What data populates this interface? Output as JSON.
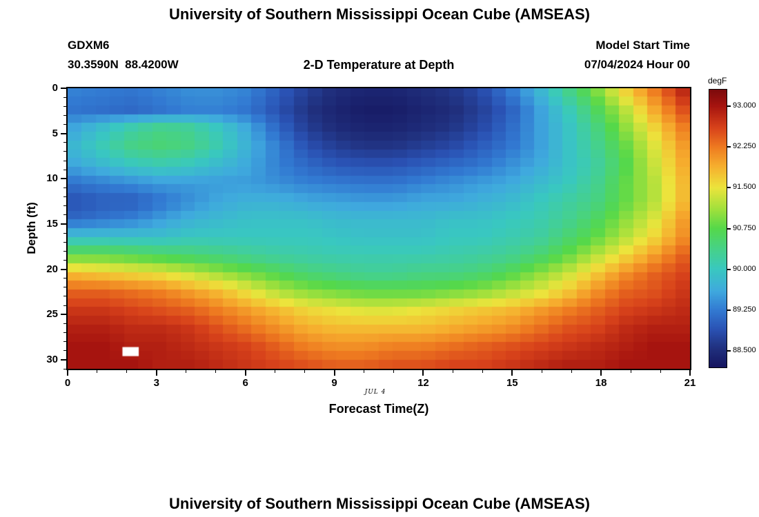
{
  "page": {
    "top_title": "University of Southern Mississippi Ocean Cube (AMSEAS)",
    "bottom_title": "University of Southern Mississippi Ocean Cube (AMSEAS)"
  },
  "header": {
    "station_id": "GDXM6",
    "coordinates": "30.3590N  88.4200W",
    "plot_title": "2-D Temperature at Depth",
    "model_start_label": "Model Start Time",
    "model_start_value": "07/04/2024 Hour 00"
  },
  "chart_data": {
    "type": "heatmap",
    "title": "2-D Temperature at Depth",
    "xlabel": "Forecast Time(Z)",
    "ylabel": "Depth (ft)",
    "date_annotation": "JUL 4",
    "x_axis": {
      "label": "Forecast Time(Z)",
      "lim": [
        0,
        21
      ],
      "major_ticks": [
        0,
        3,
        6,
        9,
        12,
        15,
        18,
        21
      ],
      "minor_step": 1,
      "hours": [
        0,
        1,
        2,
        3,
        4,
        5,
        6,
        7,
        8,
        9,
        10,
        11,
        12,
        13,
        14,
        15,
        16,
        17,
        18,
        19,
        20,
        21
      ]
    },
    "y_axis": {
      "label": "Depth (ft)",
      "lim": [
        0,
        31
      ],
      "major_ticks": [
        0,
        5,
        10,
        15,
        20,
        25,
        30
      ],
      "minor_step": 1,
      "depths_ft": [
        0,
        2,
        4,
        6,
        8,
        10,
        12,
        14,
        16,
        18,
        20,
        22,
        24,
        26,
        28,
        30
      ]
    },
    "values_degF": [
      [
        89.3,
        89.25,
        89.2,
        89.3,
        89.4,
        89.4,
        89.3,
        89.0,
        88.7,
        88.5,
        88.4,
        88.4,
        88.5,
        88.6,
        88.8,
        89.2,
        89.7,
        90.3,
        90.9,
        91.6,
        92.2,
        92.8
      ],
      [
        89.2,
        89.15,
        89.1,
        89.2,
        89.3,
        89.3,
        89.2,
        88.9,
        88.6,
        88.4,
        88.3,
        88.3,
        88.4,
        88.5,
        88.7,
        89.0,
        89.5,
        90.0,
        90.6,
        91.2,
        91.9,
        92.5
      ],
      [
        89.6,
        89.9,
        90.2,
        90.4,
        90.3,
        90.0,
        89.6,
        89.1,
        88.7,
        88.5,
        88.4,
        88.4,
        88.5,
        88.6,
        88.8,
        89.1,
        89.5,
        89.9,
        90.4,
        91.0,
        91.6,
        92.2
      ],
      [
        89.8,
        90.1,
        90.4,
        90.5,
        90.4,
        90.1,
        89.7,
        89.3,
        88.9,
        88.7,
        88.6,
        88.6,
        88.7,
        88.8,
        89.0,
        89.2,
        89.5,
        89.9,
        90.3,
        90.8,
        91.4,
        92.0
      ],
      [
        89.6,
        89.8,
        90.0,
        90.1,
        90.0,
        89.8,
        89.6,
        89.3,
        89.1,
        88.95,
        88.9,
        88.9,
        89.0,
        89.1,
        89.2,
        89.4,
        89.6,
        89.9,
        90.2,
        90.7,
        91.3,
        91.9
      ],
      [
        89.2,
        89.3,
        89.4,
        89.5,
        89.5,
        89.5,
        89.5,
        89.4,
        89.3,
        89.25,
        89.2,
        89.2,
        89.3,
        89.4,
        89.5,
        89.6,
        89.8,
        90.0,
        90.3,
        90.8,
        91.2,
        91.8
      ],
      [
        88.9,
        89.0,
        89.0,
        89.2,
        89.4,
        89.6,
        89.7,
        89.7,
        89.6,
        89.55,
        89.5,
        89.5,
        89.6,
        89.6,
        89.7,
        89.8,
        90.0,
        90.2,
        90.4,
        90.8,
        91.2,
        91.8
      ],
      [
        89.1,
        89.2,
        89.3,
        89.5,
        89.7,
        89.8,
        89.9,
        89.9,
        89.9,
        89.8,
        89.8,
        89.8,
        89.8,
        89.9,
        89.9,
        90.0,
        90.1,
        90.3,
        90.6,
        91.0,
        91.4,
        92.0
      ],
      [
        89.9,
        89.9,
        89.9,
        89.9,
        90.0,
        90.0,
        90.0,
        90.0,
        90.0,
        89.95,
        89.9,
        89.9,
        89.9,
        90.0,
        90.0,
        90.1,
        90.2,
        90.5,
        90.8,
        91.2,
        91.6,
        92.1
      ],
      [
        90.8,
        90.8,
        90.7,
        90.6,
        90.5,
        90.4,
        90.3,
        90.2,
        90.15,
        90.1,
        90.1,
        90.1,
        90.1,
        90.15,
        90.2,
        90.3,
        90.5,
        90.8,
        91.2,
        91.6,
        92.0,
        92.4
      ],
      [
        91.8,
        91.7,
        91.6,
        91.5,
        91.3,
        91.1,
        90.9,
        90.7,
        90.5,
        90.4,
        90.3,
        90.3,
        90.4,
        90.4,
        90.5,
        90.7,
        91.0,
        91.3,
        91.7,
        92.1,
        92.4,
        92.6
      ],
      [
        92.4,
        92.4,
        92.3,
        92.2,
        92.0,
        91.8,
        91.5,
        91.2,
        91.0,
        90.9,
        90.8,
        90.8,
        90.8,
        90.9,
        91.0,
        91.2,
        91.4,
        91.7,
        92.1,
        92.4,
        92.5,
        92.7
      ],
      [
        92.7,
        92.7,
        92.6,
        92.5,
        92.4,
        92.2,
        92.0,
        91.8,
        91.6,
        91.5,
        91.4,
        91.4,
        91.5,
        91.6,
        91.7,
        91.8,
        92.0,
        92.2,
        92.4,
        92.6,
        92.7,
        92.8
      ],
      [
        92.9,
        92.9,
        92.8,
        92.8,
        92.7,
        92.5,
        92.3,
        92.1,
        91.9,
        91.8,
        91.8,
        91.8,
        91.8,
        91.9,
        92.0,
        92.1,
        92.3,
        92.5,
        92.6,
        92.8,
        92.9,
        92.9
      ],
      [
        93.0,
        93.0,
        92.9,
        92.9,
        92.8,
        92.7,
        92.6,
        92.4,
        92.2,
        92.1,
        92.1,
        92.2,
        92.2,
        92.3,
        92.4,
        92.5,
        92.6,
        92.7,
        92.8,
        92.9,
        93.0,
        93.0
      ],
      [
        93.0,
        93.0,
        93.0,
        92.9,
        92.9,
        92.8,
        92.7,
        92.6,
        92.5,
        92.4,
        92.4,
        92.5,
        92.5,
        92.6,
        92.6,
        92.7,
        92.8,
        92.9,
        92.9,
        93.0,
        93.0,
        93.0
      ]
    ],
    "missing_cell": {
      "x_hour": 1.85,
      "depth_ft": 28.6,
      "width_hours": 0.55,
      "height_ft": 1.0
    },
    "colorbar": {
      "label": "degF",
      "vmin": 88.2,
      "vmax": 93.3,
      "ticks": [
        {
          "value": 93.0,
          "label": "93.000"
        },
        {
          "value": 92.25,
          "label": "92.250"
        },
        {
          "value": 91.5,
          "label": "91.500"
        },
        {
          "value": 90.75,
          "label": "90.750"
        },
        {
          "value": 90.0,
          "label": "90.000"
        },
        {
          "value": 89.25,
          "label": "89.250"
        },
        {
          "value": 88.5,
          "label": "88.500"
        }
      ],
      "colormap": [
        [
          88.2,
          "#15155f"
        ],
        [
          88.55,
          "#20307e"
        ],
        [
          88.9,
          "#2a52b4"
        ],
        [
          89.25,
          "#327ad2"
        ],
        [
          89.6,
          "#3fa9de"
        ],
        [
          90.0,
          "#39c8c0"
        ],
        [
          90.4,
          "#47d284"
        ],
        [
          90.75,
          "#55d84a"
        ],
        [
          91.1,
          "#a0e03c"
        ],
        [
          91.5,
          "#ece43c"
        ],
        [
          91.9,
          "#f6ae2e"
        ],
        [
          92.25,
          "#ee7a20"
        ],
        [
          92.6,
          "#d8431b"
        ],
        [
          93.0,
          "#a6140f"
        ],
        [
          93.3,
          "#7c0a0c"
        ]
      ]
    }
  }
}
